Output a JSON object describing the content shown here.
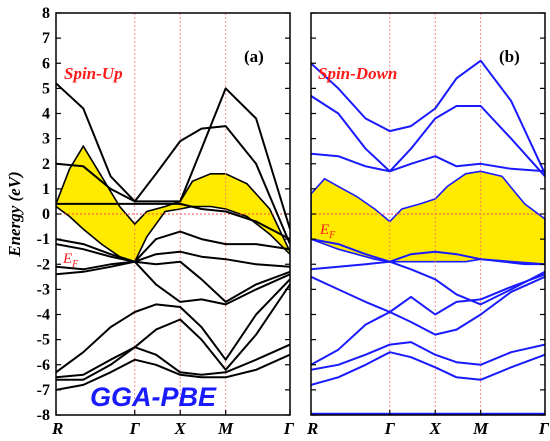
{
  "chart_data": [
    {
      "type": "line",
      "panel": "a",
      "panel_label": "(a)",
      "spin_label": "Spin-Up",
      "fermi_label": "E",
      "fermi_sub": "F",
      "method_label": "GGA-PBE",
      "line_color": "#000000",
      "fill_color": "#ffea00",
      "ylabel": "Energy (eV)",
      "ylim": [
        -8,
        8
      ],
      "yticks": [
        -8,
        -7,
        -6,
        -5,
        -4,
        -3,
        -2,
        -1,
        0,
        1,
        2,
        3,
        4,
        5,
        6,
        7,
        8
      ],
      "kpoints": [
        "R",
        "Γ",
        "X",
        "M",
        "Γ"
      ],
      "kpoint_positions": [
        0,
        0.866,
        1.366,
        1.866,
        2.573
      ],
      "highlighted_band": {
        "name": "yellow band",
        "x": [
          0,
          0.15,
          0.3,
          0.5,
          0.7,
          0.866,
          1.0,
          1.2,
          1.366,
          1.5,
          1.7,
          1.866,
          2.1,
          2.35,
          2.573
        ],
        "upper": [
          0.4,
          1.8,
          2.7,
          1.5,
          0.3,
          -0.4,
          0.1,
          0.3,
          0.5,
          1.3,
          1.6,
          1.6,
          1.2,
          0.2,
          -1.5
        ],
        "lower": [
          0.3,
          -0.1,
          -0.6,
          -1.2,
          -1.7,
          -1.9,
          -0.9,
          0.1,
          0.2,
          0.3,
          0.3,
          0.2,
          -0.1,
          -0.8,
          -1.6
        ]
      },
      "series": [
        {
          "x": [
            0,
            0.3,
            0.6,
            0.866,
            1.1,
            1.366,
            1.6,
            1.866,
            2.2,
            2.573
          ],
          "y": [
            5.2,
            4.2,
            1.5,
            0.5,
            0.5,
            0.5,
            2.6,
            5.0,
            3.8,
            -0.6
          ]
        },
        {
          "x": [
            0,
            0.3,
            0.6,
            0.866,
            1.1,
            1.366,
            1.6,
            1.866,
            2.2,
            2.573
          ],
          "y": [
            2.0,
            1.9,
            1.0,
            0.5,
            1.6,
            2.9,
            3.4,
            3.5,
            2.0,
            -1.2
          ]
        },
        {
          "x": [
            0,
            0.3,
            0.6,
            0.866,
            1.1,
            1.366,
            1.6,
            1.866,
            2.2,
            2.573
          ],
          "y": [
            0.4,
            0.4,
            0.4,
            0.4,
            0.4,
            0.4,
            0.2,
            0.1,
            -0.3,
            -1.0
          ]
        },
        {
          "x": [
            0,
            0.3,
            0.6,
            0.866,
            1.1,
            1.366,
            1.6,
            1.866,
            2.2,
            2.573
          ],
          "y": [
            -1.0,
            -1.2,
            -1.6,
            -1.9,
            -1.0,
            -0.7,
            -1.0,
            -1.2,
            -1.2,
            -1.4
          ]
        },
        {
          "x": [
            0,
            0.3,
            0.6,
            0.866,
            1.1,
            1.366,
            1.6,
            1.866,
            2.2,
            2.573
          ],
          "y": [
            -1.2,
            -1.4,
            -1.7,
            -1.9,
            -1.6,
            -1.5,
            -1.7,
            -1.8,
            -2.0,
            -2.1
          ]
        },
        {
          "x": [
            0,
            0.3,
            0.6,
            0.866,
            1.1,
            1.366,
            1.6,
            1.866,
            2.2,
            2.573
          ],
          "y": [
            -2.1,
            -2.2,
            -2.0,
            -1.9,
            -2.0,
            -1.9,
            -2.6,
            -3.5,
            -2.8,
            -2.3
          ]
        },
        {
          "x": [
            0,
            0.3,
            0.6,
            0.866,
            1.1,
            1.366,
            1.6,
            1.866,
            2.2,
            2.573
          ],
          "y": [
            -2.4,
            -2.3,
            -2.1,
            -1.9,
            -2.8,
            -3.5,
            -3.4,
            -3.6,
            -3.0,
            -2.4
          ]
        },
        {
          "x": [
            0,
            0.3,
            0.6,
            0.866,
            1.1,
            1.366,
            1.6,
            1.866,
            2.2,
            2.573
          ],
          "y": [
            -6.3,
            -5.5,
            -4.5,
            -3.9,
            -3.6,
            -3.7,
            -4.5,
            -5.8,
            -4.0,
            -2.6
          ]
        },
        {
          "x": [
            0,
            0.3,
            0.6,
            0.866,
            1.1,
            1.366,
            1.6,
            1.866,
            2.2,
            2.573
          ],
          "y": [
            -6.5,
            -6.4,
            -5.8,
            -5.3,
            -4.6,
            -4.2,
            -5.0,
            -6.2,
            -4.8,
            -2.8
          ]
        },
        {
          "x": [
            0,
            0.3,
            0.6,
            0.866,
            1.1,
            1.366,
            1.6,
            1.866,
            2.2,
            2.573
          ],
          "y": [
            -6.6,
            -6.6,
            -6.0,
            -5.3,
            -5.6,
            -6.3,
            -6.4,
            -6.3,
            -5.8,
            -5.2
          ]
        },
        {
          "x": [
            0,
            0.3,
            0.6,
            0.866,
            1.1,
            1.366,
            1.6,
            1.866,
            2.2,
            2.573
          ],
          "y": [
            -7.0,
            -6.8,
            -6.3,
            -5.8,
            -6.0,
            -6.4,
            -6.5,
            -6.5,
            -6.2,
            -5.6
          ]
        }
      ]
    },
    {
      "type": "line",
      "panel": "b",
      "panel_label": "(b)",
      "spin_label": "Spin-Down",
      "fermi_label": "E",
      "fermi_sub": "F",
      "line_color": "#1a1aff",
      "fill_color": "#ffea00",
      "ylim": [
        -8,
        8
      ],
      "kpoints": [
        "R",
        "Γ",
        "X",
        "M",
        "Γ"
      ],
      "kpoint_positions": [
        0,
        0.866,
        1.366,
        1.866,
        2.573
      ],
      "highlighted_band": {
        "name": "yellow band",
        "x": [
          0,
          0.15,
          0.3,
          0.5,
          0.7,
          0.866,
          1.0,
          1.2,
          1.366,
          1.5,
          1.7,
          1.866,
          2.1,
          2.35,
          2.573
        ],
        "upper": [
          0.8,
          1.4,
          1.1,
          0.7,
          0.2,
          -0.3,
          0.2,
          0.4,
          0.6,
          1.1,
          1.6,
          1.7,
          1.5,
          0.4,
          -0.2
        ],
        "lower": [
          -1.0,
          -1.2,
          -1.4,
          -1.6,
          -1.8,
          -1.9,
          -1.9,
          -1.9,
          -1.9,
          -1.9,
          -1.9,
          -1.8,
          -1.9,
          -2.0,
          -2.0
        ]
      },
      "series": [
        {
          "x": [
            0,
            0.3,
            0.6,
            0.866,
            1.1,
            1.366,
            1.6,
            1.866,
            2.2,
            2.573
          ],
          "y": [
            6.0,
            5.0,
            3.8,
            3.3,
            3.5,
            4.2,
            5.4,
            6.1,
            4.5,
            1.6
          ]
        },
        {
          "x": [
            0,
            0.3,
            0.6,
            0.866,
            1.1,
            1.366,
            1.6,
            1.866,
            2.2,
            2.573
          ],
          "y": [
            4.7,
            4.0,
            2.6,
            1.7,
            2.6,
            3.8,
            4.3,
            4.3,
            3.0,
            1.5
          ]
        },
        {
          "x": [
            0,
            0.3,
            0.6,
            0.866,
            1.1,
            1.366,
            1.6,
            1.866,
            2.2,
            2.573
          ],
          "y": [
            2.4,
            2.3,
            1.9,
            1.7,
            2.0,
            2.3,
            1.9,
            2.0,
            1.8,
            1.7
          ]
        },
        {
          "x": [
            0,
            0.3,
            0.6,
            0.866,
            1.1,
            1.366,
            1.6,
            1.866,
            2.2,
            2.573
          ],
          "y": [
            -1.0,
            -1.2,
            -1.6,
            -1.9,
            -1.6,
            -1.5,
            -1.6,
            -1.8,
            -1.9,
            -2.0
          ]
        },
        {
          "x": [
            0,
            0.3,
            0.6,
            0.866,
            1.1,
            1.366,
            1.6,
            1.866,
            2.2,
            2.573
          ],
          "y": [
            -2.2,
            -2.1,
            -2.0,
            -1.9,
            -2.2,
            -2.6,
            -3.2,
            -3.6,
            -3.0,
            -2.3
          ]
        },
        {
          "x": [
            0,
            0.3,
            0.6,
            0.866,
            1.1,
            1.366,
            1.6,
            1.866,
            2.2,
            2.573
          ],
          "y": [
            -2.5,
            -3.0,
            -3.5,
            -3.9,
            -3.3,
            -4.0,
            -3.5,
            -3.4,
            -2.9,
            -2.4
          ]
        },
        {
          "x": [
            0,
            0.3,
            0.6,
            0.866,
            1.1,
            1.366,
            1.6,
            1.866,
            2.2,
            2.573
          ],
          "y": [
            -6.0,
            -5.4,
            -4.4,
            -3.9,
            -4.3,
            -4.8,
            -4.6,
            -4.0,
            -3.1,
            -2.5
          ]
        },
        {
          "x": [
            0,
            0.3,
            0.6,
            0.866,
            1.1,
            1.366,
            1.6,
            1.866,
            2.2,
            2.573
          ],
          "y": [
            -6.2,
            -6.0,
            -5.6,
            -5.2,
            -5.1,
            -5.6,
            -5.9,
            -6.0,
            -5.5,
            -5.2
          ]
        },
        {
          "x": [
            0,
            0.3,
            0.6,
            0.866,
            1.1,
            1.366,
            1.6,
            1.866,
            2.2,
            2.573
          ],
          "y": [
            -6.8,
            -6.5,
            -6.0,
            -5.5,
            -5.7,
            -6.1,
            -6.5,
            -6.6,
            -6.1,
            -5.6
          ]
        },
        {
          "x": [
            0,
            2.573
          ],
          "y": [
            -7.95,
            -7.95
          ]
        }
      ]
    }
  ]
}
